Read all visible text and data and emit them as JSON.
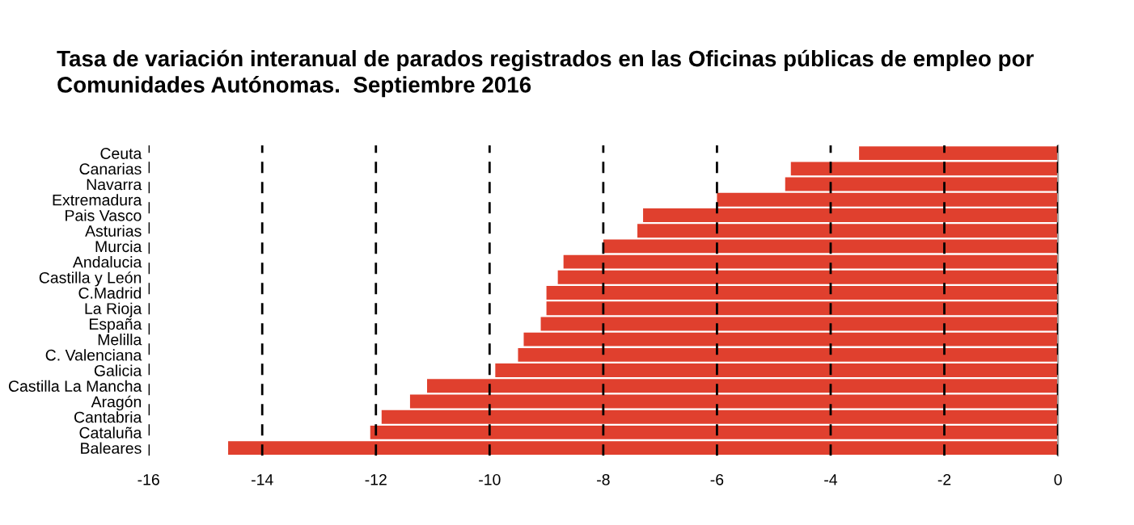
{
  "chart_data": {
    "type": "bar",
    "orientation": "horizontal",
    "title": "Tasa de variación interanual de parados registrados en las Oficinas públicas de empleo por\nComunidades Autónomas.  Septiembre 2016",
    "categories": [
      "Ceuta",
      "Canarias",
      "Navarra",
      "Extremadura",
      "Pais Vasco",
      "Asturias",
      "Murcia",
      "Andalucia",
      "Castilla y León",
      "C.Madrid",
      "La Rioja",
      "España",
      "Melilla",
      "C. Valenciana",
      "Galicia",
      "Castilla La Mancha",
      "Aragón",
      "Cantabria",
      "Cataluña",
      "Baleares"
    ],
    "values": [
      -3.5,
      -4.7,
      -4.8,
      -6.0,
      -7.3,
      -7.4,
      -8.0,
      -8.7,
      -8.8,
      -9.0,
      -9.0,
      -9.1,
      -9.4,
      -9.5,
      -9.9,
      -11.1,
      -11.4,
      -11.9,
      -12.1,
      -14.6
    ],
    "color": "#e0402e",
    "xlim": [
      -16,
      0
    ],
    "xticks": [
      -16,
      -14,
      -12,
      -10,
      -8,
      -6,
      -4,
      -2,
      0
    ],
    "grid": "x",
    "line_style": "dashed",
    "legend": false
  }
}
